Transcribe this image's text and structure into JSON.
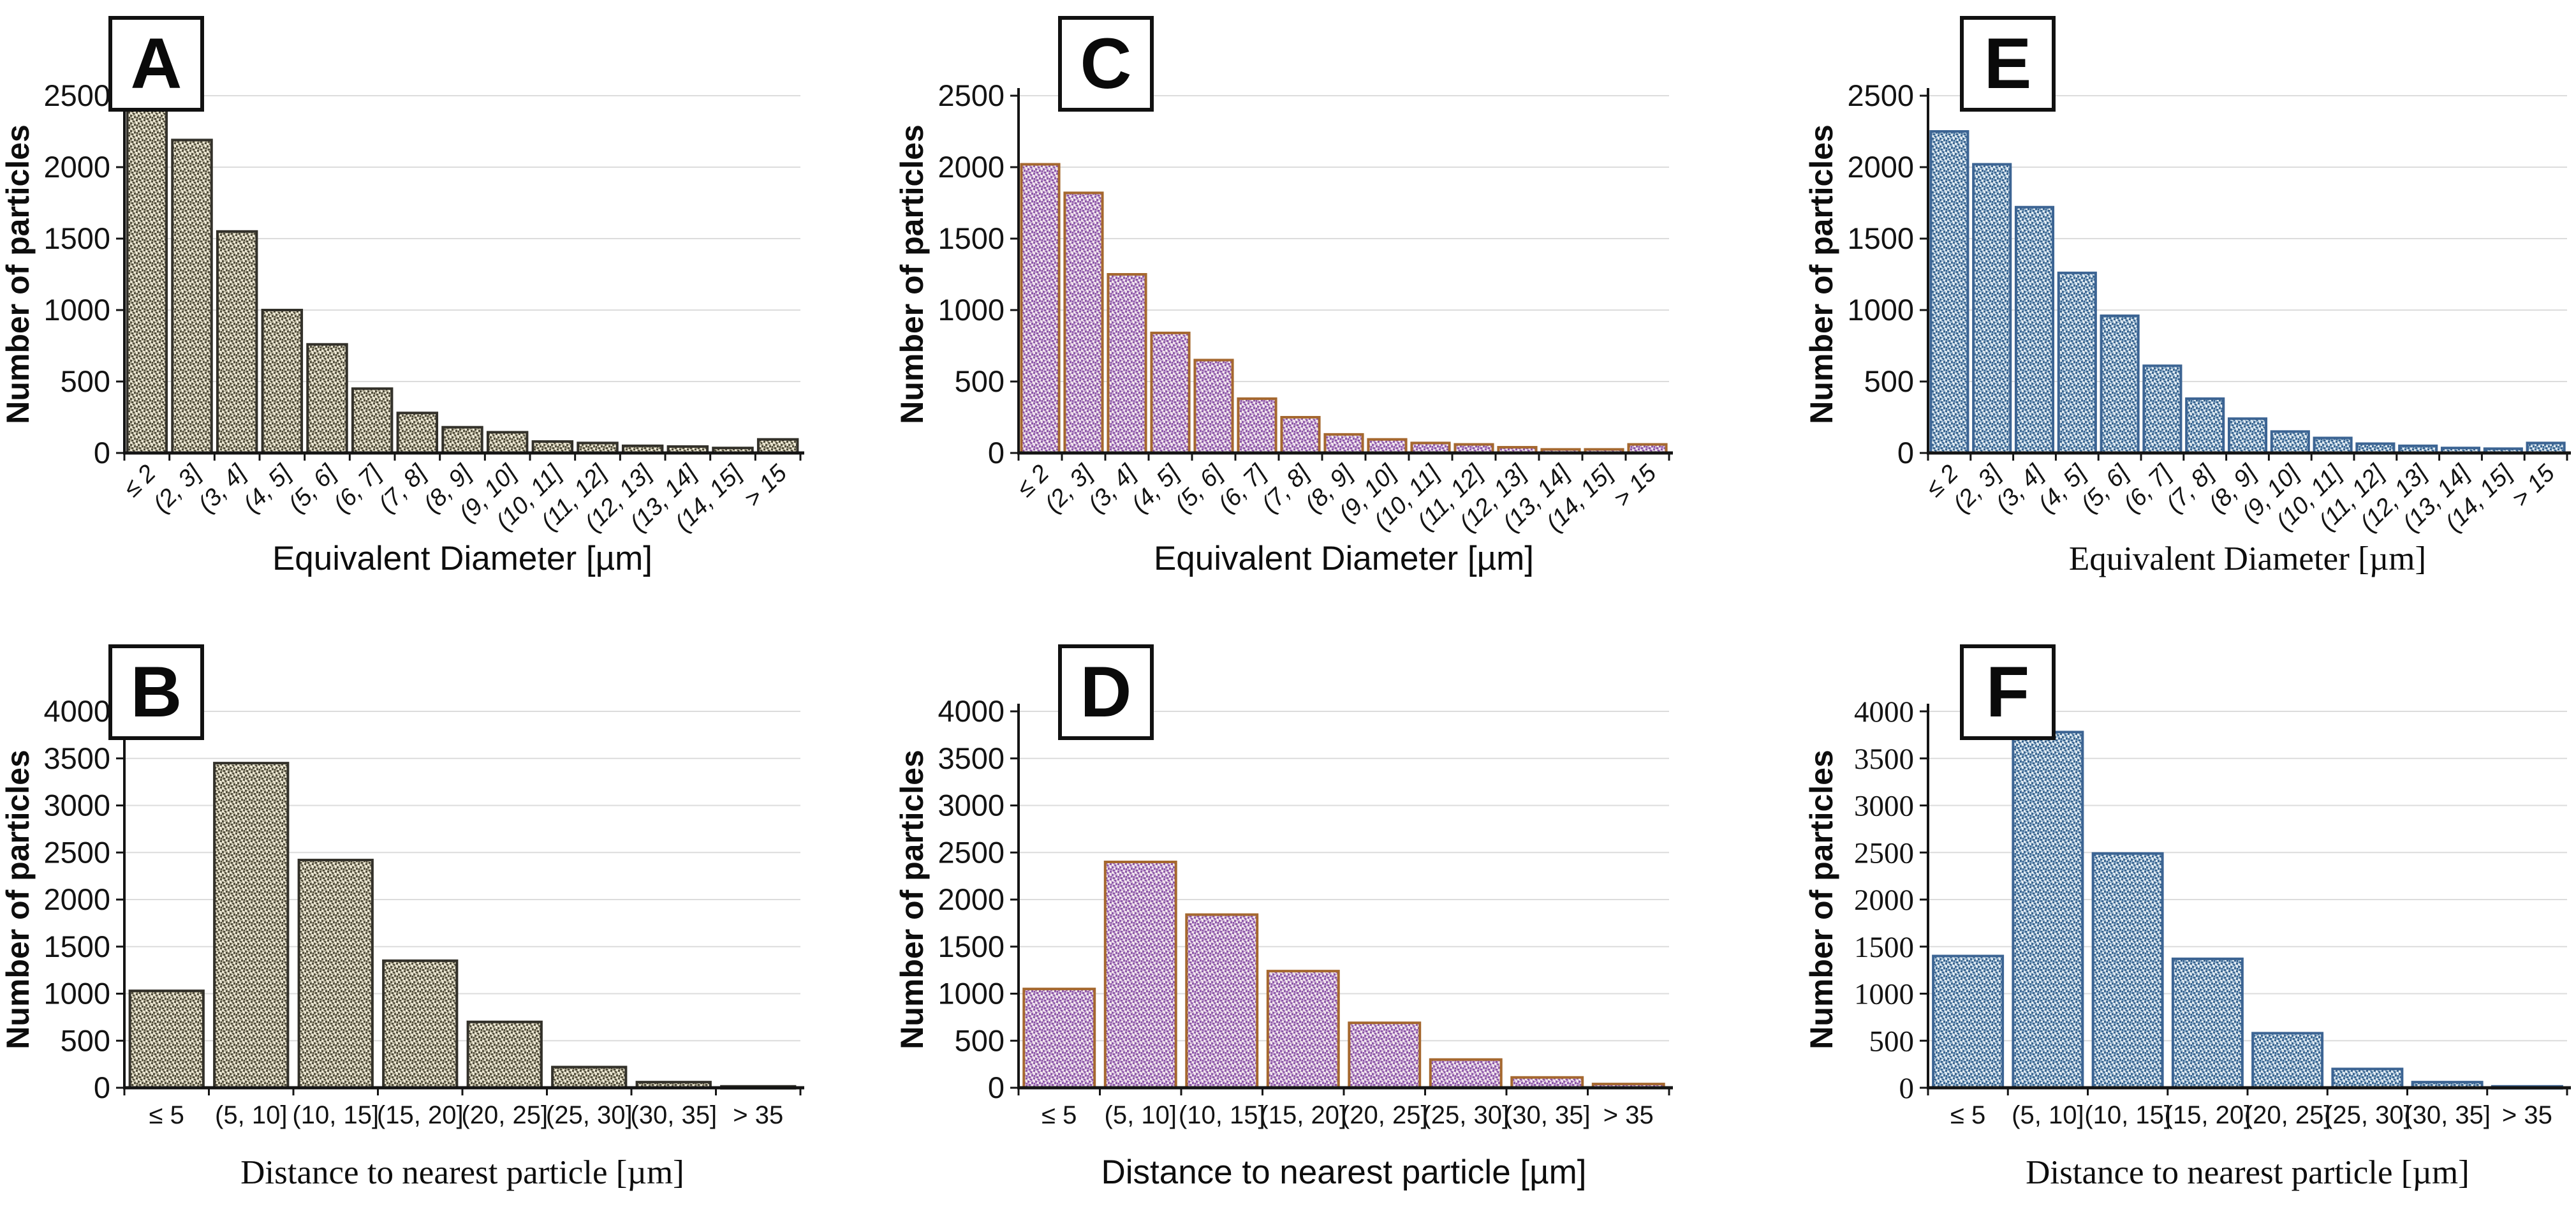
{
  "figure": {
    "panels": [
      "A",
      "B",
      "C",
      "D",
      "E",
      "F"
    ],
    "y_axis_label": "Number of particles",
    "x_axis_label_top_row": "Equivalent Diameter [µm]",
    "x_axis_label_bottom_row": "Distance to nearest particle [µm]"
  },
  "chart_data": [
    {
      "id": "A",
      "panel_label": "A",
      "type": "bar",
      "row": "top",
      "title": "",
      "xlabel": "Equivalent Diameter [µm]",
      "ylabel": "Number of particles",
      "ylim": [
        0,
        2500
      ],
      "ytick_step": 500,
      "grid": true,
      "legend": "none",
      "categories": [
        "≤ 2",
        "(2, 3]",
        "(3, 4]",
        "(4, 5]",
        "(5, 6]",
        "(6, 7]",
        "(7, 8]",
        "(8, 9]",
        "(9, 10]",
        "(10, 11]",
        "(11, 12]",
        "(12, 13]",
        "(13, 14]",
        "(14, 15]",
        "> 15"
      ],
      "values": [
        2400,
        2190,
        1550,
        1000,
        760,
        450,
        280,
        180,
        145,
        80,
        70,
        50,
        45,
        35,
        95
      ],
      "colors": {
        "bar_base": "#b2ad96",
        "bar_speckle_dark": "#514d3c",
        "bar_speckle_light": "#eee9d5",
        "bar_border": "#33312a"
      }
    },
    {
      "id": "B",
      "panel_label": "B",
      "type": "bar",
      "row": "bottom",
      "title": "",
      "xlabel": "Distance to nearest particle [µm]",
      "ylabel": "Number of particles",
      "ylim": [
        0,
        4000
      ],
      "ytick_step": 500,
      "grid": true,
      "legend": "none",
      "categories": [
        "≤ 5",
        "(5, 10]",
        "(10, 15]",
        "(15, 20]",
        "(20, 25]",
        "(25, 30]",
        "(30, 35]",
        "> 35"
      ],
      "values": [
        1030,
        3450,
        2420,
        1350,
        700,
        220,
        60,
        15
      ],
      "colors": {
        "bar_base": "#b2ad96",
        "bar_speckle_dark": "#514d3c",
        "bar_speckle_light": "#eee9d5",
        "bar_border": "#33312a"
      }
    },
    {
      "id": "C",
      "panel_label": "C",
      "type": "bar",
      "row": "top",
      "title": "",
      "xlabel": "Equivalent Diameter [µm]",
      "ylabel": "Number of particles",
      "ylim": [
        0,
        2500
      ],
      "ytick_step": 500,
      "grid": true,
      "legend": "none",
      "categories": [
        "≤ 2",
        "(2, 3]",
        "(3, 4]",
        "(4, 5]",
        "(5, 6]",
        "(6, 7]",
        "(7, 8]",
        "(8, 9]",
        "(9, 10]",
        "(10, 11]",
        "(11, 12]",
        "(12, 13]",
        "(13, 14]",
        "(14, 15]",
        "> 15"
      ],
      "values": [
        2020,
        1820,
        1250,
        840,
        650,
        380,
        250,
        130,
        95,
        70,
        60,
        40,
        25,
        25,
        60
      ],
      "colors": {
        "bar_base": "#c7a8d2",
        "bar_speckle_dark": "#8d58a8",
        "bar_speckle_light": "#f3e8ef",
        "bar_border": "#a5682f"
      }
    },
    {
      "id": "D",
      "panel_label": "D",
      "type": "bar",
      "row": "bottom",
      "title": "",
      "xlabel": "Distance to nearest particle [µm]",
      "ylabel": "Number of particles",
      "ylim": [
        0,
        4000
      ],
      "ytick_step": 500,
      "grid": true,
      "legend": "none",
      "categories": [
        "≤ 5",
        "(5, 10]",
        "(10, 15]",
        "(15, 20]",
        "(20, 25]",
        "(25, 30]",
        "(30, 35]",
        "> 35"
      ],
      "values": [
        1050,
        2400,
        1840,
        1240,
        690,
        300,
        110,
        40
      ],
      "colors": {
        "bar_base": "#c7a8d2",
        "bar_speckle_dark": "#8d58a8",
        "bar_speckle_light": "#f3e8ef",
        "bar_border": "#a5682f"
      }
    },
    {
      "id": "E",
      "panel_label": "E",
      "type": "bar",
      "row": "top",
      "title": "",
      "xlabel": "Equivalent Diameter [µm]",
      "ylabel": "Number of particles",
      "ylim": [
        0,
        2500
      ],
      "ytick_step": 500,
      "grid": true,
      "legend": "none",
      "categories": [
        "≤ 2",
        "(2, 3]",
        "(3, 4]",
        "(4, 5]",
        "(5, 6]",
        "(6, 7]",
        "(7, 8]",
        "(8, 9]",
        "(9, 10]",
        "(10, 11]",
        "(11, 12]",
        "(12, 13]",
        "(13, 14]",
        "(14, 15]",
        "> 15"
      ],
      "values": [
        2250,
        2020,
        1720,
        1260,
        960,
        610,
        380,
        240,
        150,
        105,
        65,
        50,
        35,
        30,
        70
      ],
      "colors": {
        "bar_base": "#8fafca",
        "bar_speckle_dark": "#3a648f",
        "bar_speckle_light": "#e3ecf2",
        "bar_border": "#3c6493"
      }
    },
    {
      "id": "F",
      "panel_label": "F",
      "type": "bar",
      "row": "bottom",
      "title": "",
      "xlabel": "Distance to nearest particle [µm]",
      "ylabel": "Number of particles",
      "ylim": [
        0,
        4000
      ],
      "ytick_step": 500,
      "grid": true,
      "legend": "none",
      "categories": [
        "≤ 5",
        "(5, 10]",
        "(10, 15]",
        "(15, 20]",
        "(20, 25]",
        "(25, 30]",
        "(30, 35]",
        "> 35"
      ],
      "values": [
        1400,
        3780,
        2490,
        1370,
        580,
        200,
        60,
        15
      ],
      "colors": {
        "bar_base": "#8fafca",
        "bar_speckle_dark": "#3a648f",
        "bar_speckle_light": "#e3ecf2",
        "bar_border": "#3c6493"
      }
    }
  ]
}
